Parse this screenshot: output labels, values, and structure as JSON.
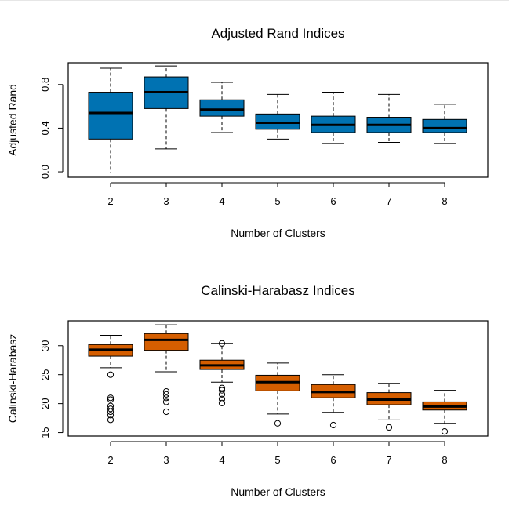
{
  "chart_data": [
    {
      "type": "box",
      "title": "Adjusted Rand Indices",
      "xlabel": "Number of Clusters",
      "ylabel": "Adjusted Rand",
      "categories": [
        "2",
        "3",
        "4",
        "5",
        "6",
        "7",
        "8"
      ],
      "yticks": [
        "0.0",
        "0.4",
        "0.8"
      ],
      "ylim": [
        -0.05,
        1.0
      ],
      "fill_color": "#0072B2",
      "boxes": [
        {
          "whisker_low": -0.01,
          "q1": 0.3,
          "median": 0.54,
          "q3": 0.73,
          "whisker_high": 0.95,
          "outliers": []
        },
        {
          "whisker_low": 0.21,
          "q1": 0.58,
          "median": 0.73,
          "q3": 0.87,
          "whisker_high": 0.97,
          "outliers": []
        },
        {
          "whisker_low": 0.36,
          "q1": 0.51,
          "median": 0.57,
          "q3": 0.66,
          "whisker_high": 0.82,
          "outliers": []
        },
        {
          "whisker_low": 0.3,
          "q1": 0.39,
          "median": 0.45,
          "q3": 0.53,
          "whisker_high": 0.71,
          "outliers": []
        },
        {
          "whisker_low": 0.26,
          "q1": 0.36,
          "median": 0.43,
          "q3": 0.51,
          "whisker_high": 0.73,
          "outliers": []
        },
        {
          "whisker_low": 0.27,
          "q1": 0.36,
          "median": 0.43,
          "q3": 0.5,
          "whisker_high": 0.71,
          "outliers": []
        },
        {
          "whisker_low": 0.26,
          "q1": 0.36,
          "median": 0.4,
          "q3": 0.48,
          "whisker_high": 0.62,
          "outliers": []
        }
      ]
    },
    {
      "type": "box",
      "title": "Calinski-Harabasz Indices",
      "xlabel": "Number of Clusters",
      "ylabel": "Calinski-Harabasz",
      "categories": [
        "2",
        "3",
        "4",
        "5",
        "6",
        "7",
        "8"
      ],
      "yticks": [
        "15",
        "20",
        "25",
        "30"
      ],
      "ylim": [
        14.4,
        34.3
      ],
      "fill_color": "#D55E00",
      "boxes": [
        {
          "whisker_low": 26.2,
          "q1": 28.2,
          "median": 29.3,
          "q3": 30.2,
          "whisker_high": 31.8,
          "outliers": [
            25.0,
            21.0,
            20.7,
            19.6,
            19.1,
            18.6,
            18.0,
            17.2
          ]
        },
        {
          "whisker_low": 25.5,
          "q1": 29.2,
          "median": 31.0,
          "q3": 32.1,
          "whisker_high": 33.6,
          "outliers": [
            22.1,
            21.6,
            21.0,
            20.3,
            18.6
          ]
        },
        {
          "whisker_low": 23.7,
          "q1": 25.9,
          "median": 26.6,
          "q3": 27.5,
          "whisker_high": 30.4,
          "outliers": [
            30.4,
            22.7,
            22.3,
            21.6,
            20.8,
            20.1
          ]
        },
        {
          "whisker_low": 18.2,
          "q1": 22.2,
          "median": 23.7,
          "q3": 24.9,
          "whisker_high": 27.0,
          "outliers": [
            16.6
          ]
        },
        {
          "whisker_low": 18.5,
          "q1": 21.0,
          "median": 22.0,
          "q3": 23.3,
          "whisker_high": 25.0,
          "outliers": [
            16.3
          ]
        },
        {
          "whisker_low": 17.2,
          "q1": 19.8,
          "median": 20.7,
          "q3": 21.9,
          "whisker_high": 23.5,
          "outliers": [
            15.9
          ]
        },
        {
          "whisker_low": 16.6,
          "q1": 18.9,
          "median": 19.5,
          "q3": 20.3,
          "whisker_high": 22.3,
          "outliers": [
            15.2
          ]
        }
      ]
    }
  ]
}
